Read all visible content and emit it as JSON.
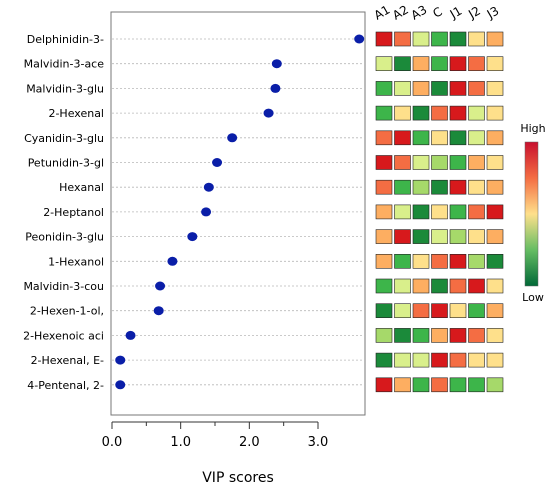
{
  "chart_data": {
    "type": "scatter",
    "xlabel": "VIP scores",
    "xlim": [
      -0.1,
      3.75
    ],
    "xticks": [
      0.0,
      1.0,
      2.0,
      3.0
    ],
    "xtick_labels": [
      "0.0",
      "1.0",
      "2.0",
      "3.0"
    ],
    "grid": "horizontal dotted",
    "point_color": "#0a1ea8",
    "series": [
      {
        "categories": [
          "Delphinidin-3-",
          "Malvidin-3-ace",
          "Malvidin-3-glu",
          "2-Hexenal",
          "Cyanidin-3-glu",
          "Petunidin-3-gl",
          "Hexanal",
          "2-Heptanol",
          "Peonidin-3-glu",
          "1-Hexanol",
          "Malvidin-3-cou",
          "2-Hexen-1-ol,",
          "2-Hexenoic aci",
          "2-Hexenal, E-",
          "4-Pentenal, 2-"
        ],
        "values": [
          3.6,
          2.4,
          2.38,
          2.28,
          1.75,
          1.53,
          1.41,
          1.37,
          1.17,
          0.88,
          0.7,
          0.68,
          0.27,
          0.12,
          0.12
        ]
      }
    ],
    "heatmap": {
      "columns": [
        "A1",
        "A2",
        "A3",
        "C",
        "J1",
        "J2",
        "J3"
      ],
      "levels": [
        [
          7,
          6,
          3,
          1,
          0,
          4,
          5
        ],
        [
          3,
          0,
          5,
          1,
          7,
          6,
          4
        ],
        [
          1,
          3,
          5,
          0,
          7,
          6,
          4
        ],
        [
          1,
          4,
          0,
          6,
          7,
          3,
          4
        ],
        [
          6,
          7,
          1,
          4,
          0,
          3,
          5
        ],
        [
          7,
          6,
          3,
          2,
          1,
          5,
          4
        ],
        [
          6,
          1,
          2,
          0,
          7,
          4,
          5
        ],
        [
          5,
          3,
          0,
          4,
          1,
          6,
          7
        ],
        [
          5,
          7,
          0,
          3,
          2,
          4,
          5
        ],
        [
          5,
          1,
          4,
          6,
          7,
          2,
          0
        ],
        [
          1,
          3,
          5,
          0,
          6,
          7,
          4
        ],
        [
          0,
          3,
          6,
          7,
          4,
          1,
          5
        ],
        [
          2,
          0,
          1,
          5,
          7,
          6,
          4
        ],
        [
          0,
          3,
          3,
          7,
          6,
          4,
          4
        ],
        [
          7,
          5,
          1,
          6,
          1,
          1,
          2
        ]
      ],
      "palette": [
        "#1b8a3a",
        "#3db54a",
        "#a6d96a",
        "#d9ef8b",
        "#fee08b",
        "#fdae61",
        "#f46d43",
        "#d7191c"
      ],
      "legend": {
        "high_label": "High",
        "low_label": "Low"
      }
    }
  }
}
